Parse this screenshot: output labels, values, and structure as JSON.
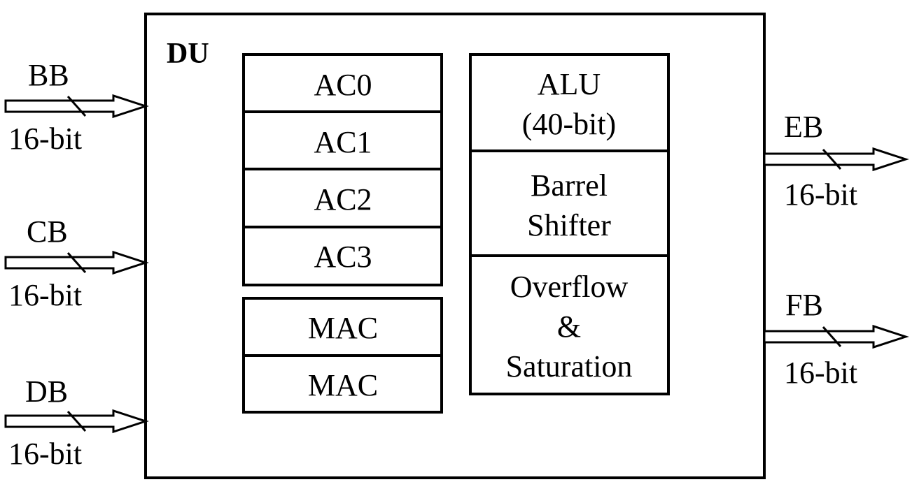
{
  "unit": {
    "label": "DU"
  },
  "inputs": [
    {
      "name": "BB",
      "width": "16-bit"
    },
    {
      "name": "CB",
      "width": "16-bit"
    },
    {
      "name": "DB",
      "width": "16-bit"
    }
  ],
  "outputs": [
    {
      "name": "EB",
      "width": "16-bit"
    },
    {
      "name": "FB",
      "width": "16-bit"
    }
  ],
  "accumulators": [
    "AC0",
    "AC1",
    "AC2",
    "AC3"
  ],
  "macs": [
    "MAC",
    "MAC"
  ],
  "alu": {
    "line1": "ALU",
    "line2": "(40-bit)"
  },
  "shifter": {
    "line1": "Barrel",
    "line2": "Shifter"
  },
  "overflow": {
    "line1": "Overflow",
    "line2": "&",
    "line3": "Saturation"
  }
}
